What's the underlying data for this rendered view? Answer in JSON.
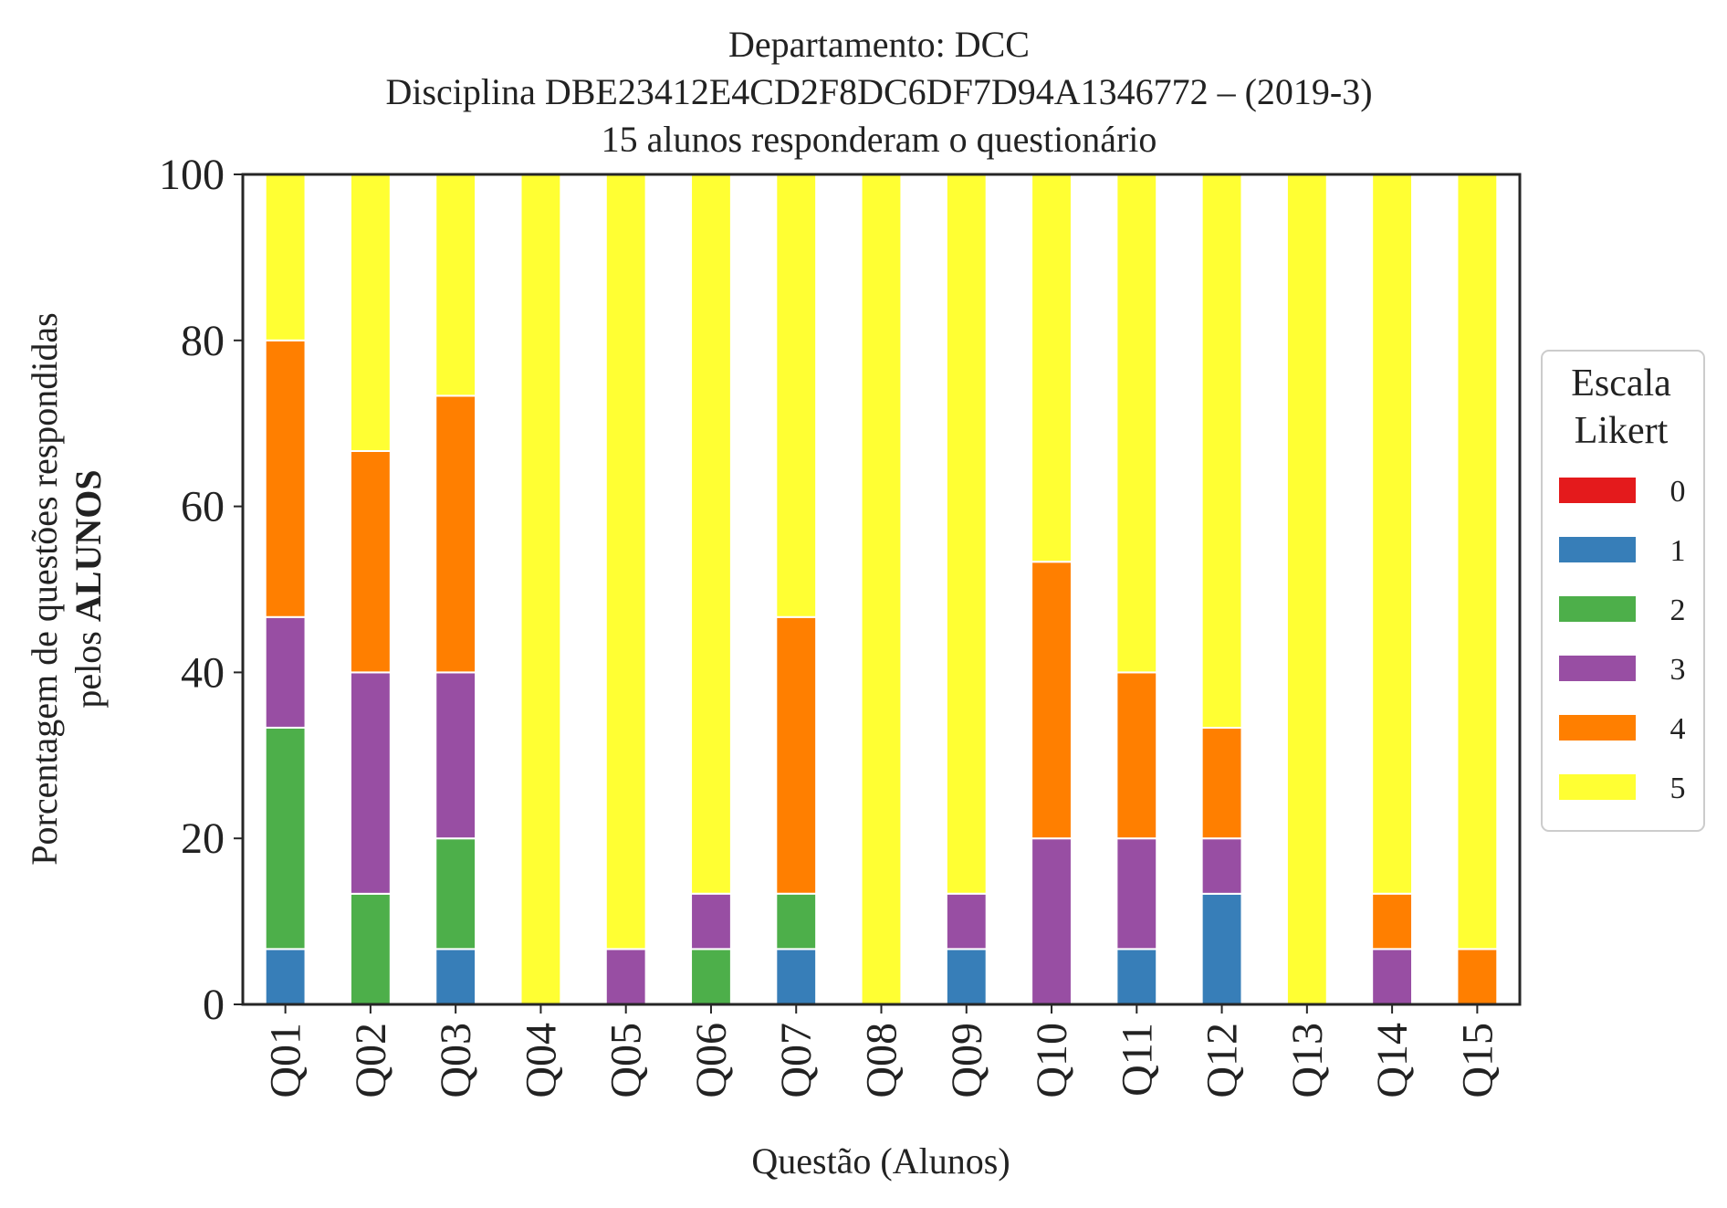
{
  "chart_data": {
    "type": "bar",
    "stacked": true,
    "title_lines": [
      "Departamento: DCC",
      "Disciplina DBE23412E4CD2F8DC6DF7D94A1346772 – (2019-3)",
      "15 alunos responderam o questionário"
    ],
    "xlabel": "Questão (Alunos)",
    "ylabel_line1": "Porcentagem de questões respondidas",
    "ylabel_line2_prefix": "pelos ",
    "ylabel_line2_bold": "ALUNOS",
    "ylim": [
      0,
      100
    ],
    "yticks": [
      "0",
      "20",
      "40",
      "60",
      "80",
      "100"
    ],
    "grid": false,
    "legend": {
      "title_lines": [
        "Escala",
        "Likert"
      ],
      "placement": "right"
    },
    "categories": [
      "Q01",
      "Q02",
      "Q03",
      "Q04",
      "Q05",
      "Q06",
      "Q07",
      "Q08",
      "Q09",
      "Q10",
      "Q11",
      "Q12",
      "Q13",
      "Q14",
      "Q15"
    ],
    "series": [
      {
        "name": "0",
        "color": "#e41a1c",
        "values": [
          0,
          0,
          0,
          0,
          0,
          0,
          0,
          0,
          0,
          0,
          0,
          0,
          0,
          0,
          0
        ]
      },
      {
        "name": "1",
        "color": "#377eb8",
        "values": [
          6.67,
          0,
          6.67,
          0,
          0,
          0,
          6.67,
          0,
          6.67,
          0,
          6.67,
          13.33,
          0,
          0,
          0
        ]
      },
      {
        "name": "2",
        "color": "#4daf4a",
        "values": [
          26.67,
          13.33,
          13.33,
          0,
          0,
          6.67,
          6.67,
          0,
          0,
          0,
          0,
          0,
          0,
          0,
          0
        ]
      },
      {
        "name": "3",
        "color": "#984ea3",
        "values": [
          13.33,
          26.67,
          20,
          0,
          6.67,
          6.67,
          0,
          0,
          6.67,
          20,
          13.33,
          6.67,
          0,
          6.67,
          0
        ]
      },
      {
        "name": "4",
        "color": "#ff7f00",
        "values": [
          33.33,
          26.67,
          33.33,
          0,
          0,
          0,
          33.33,
          0,
          0,
          33.33,
          20,
          13.33,
          0,
          6.67,
          6.67
        ]
      },
      {
        "name": "5",
        "color": "#ffff33",
        "values": [
          20,
          33.33,
          26.67,
          100,
          93.33,
          86.67,
          53.33,
          100,
          86.67,
          46.67,
          60,
          66.67,
          100,
          86.67,
          93.33
        ]
      }
    ]
  }
}
